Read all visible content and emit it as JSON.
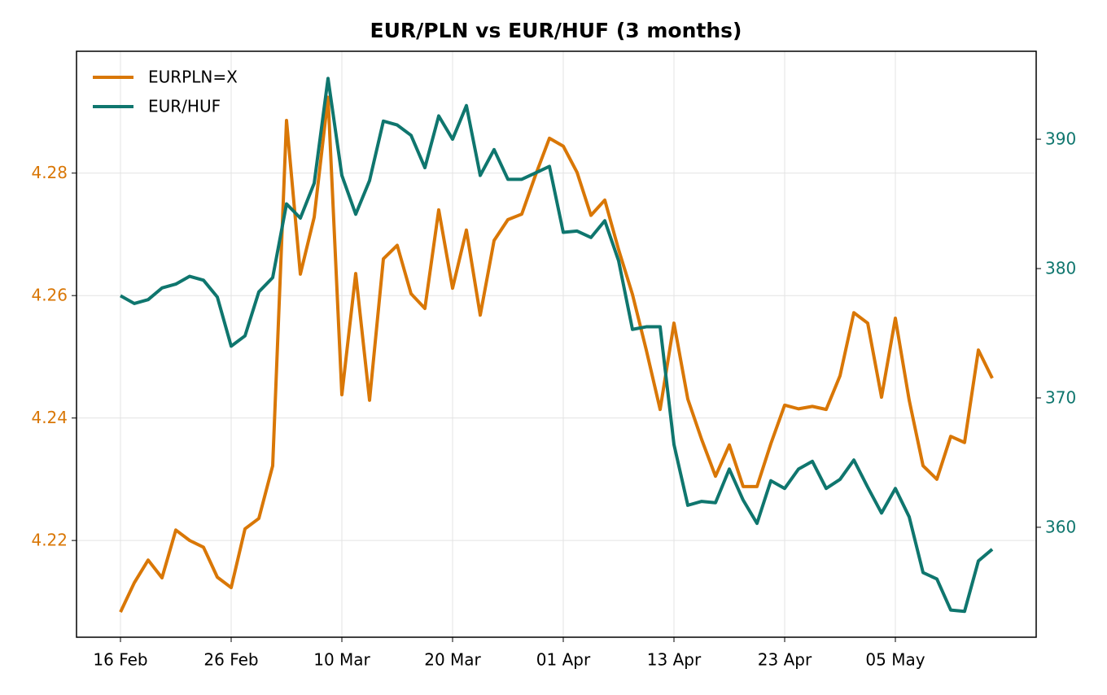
{
  "chart_data": {
    "type": "line",
    "title": "EUR/PLN vs EUR/HUF (3 months)",
    "categories": [
      "16 Feb",
      null,
      null,
      null,
      null,
      null,
      null,
      null,
      "26 Feb",
      null,
      null,
      null,
      null,
      null,
      null,
      null,
      "10 Mar",
      null,
      null,
      null,
      null,
      null,
      null,
      null,
      "20 Mar",
      null,
      null,
      null,
      null,
      null,
      null,
      null,
      "01 Apr",
      null,
      null,
      null,
      null,
      null,
      null,
      null,
      "13 Apr",
      null,
      null,
      null,
      null,
      null,
      null,
      null,
      "23 Apr",
      null,
      null,
      null,
      null,
      null,
      null,
      null,
      "05 May",
      null,
      null,
      null,
      null,
      null,
      null,
      null
    ],
    "series": [
      {
        "name": "EURPLN=X",
        "color": "#d97706",
        "values": [
          4.2083,
          4.2131,
          4.2168,
          4.2139,
          4.2217,
          4.22,
          4.2189,
          4.214,
          4.2123,
          4.2219,
          4.2236,
          4.2322,
          4.2886,
          4.2635,
          4.2728,
          4.2924,
          4.2438,
          4.2636,
          4.2429,
          4.266,
          4.2682,
          4.2603,
          4.2579,
          4.274,
          4.2612,
          4.2707,
          4.2568,
          4.269,
          4.2724,
          4.2733,
          4.2797,
          4.2857,
          4.2844,
          4.2801,
          4.2731,
          4.2756,
          4.2675,
          4.2602,
          4.2511,
          4.2414,
          4.2555,
          4.2431,
          4.2365,
          4.2305,
          4.2356,
          4.2288,
          4.2288,
          4.2358,
          4.2421,
          4.2415,
          4.2419,
          4.2414,
          4.2469,
          4.2572,
          4.2555,
          4.2434,
          4.2563,
          4.2429,
          4.2322,
          4.23,
          4.237,
          4.236,
          4.2511,
          4.2465
        ]
      },
      {
        "name": "EUR/HUF",
        "color": "#0f766e",
        "axis": "y2",
        "values": [
          377.9,
          377.3,
          377.6,
          378.5,
          378.8,
          379.4,
          379.1,
          377.8,
          374.0,
          374.8,
          378.2,
          379.3,
          385.0,
          383.9,
          386.6,
          394.7,
          387.2,
          384.2,
          386.8,
          391.4,
          391.1,
          390.3,
          387.8,
          391.8,
          390.0,
          392.6,
          387.2,
          389.2,
          386.9,
          386.9,
          387.4,
          387.9,
          382.8,
          382.9,
          382.4,
          383.7,
          380.6,
          375.3,
          375.5,
          375.5,
          366.4,
          361.7,
          362.0,
          361.9,
          364.5,
          362.1,
          360.3,
          363.6,
          363.0,
          364.5,
          365.1,
          363.0,
          363.7,
          365.2,
          363.1,
          361.1,
          363.0,
          360.8,
          356.5,
          356.0,
          353.6,
          353.5,
          357.4,
          358.3
        ]
      }
    ],
    "ylim": [
      4.2042,
      4.2999
    ],
    "yticks": [
      4.22,
      4.24,
      4.26,
      4.28
    ],
    "y2lim": [
      351.5,
      396.8
    ],
    "y2ticks": [
      360,
      370,
      380,
      390
    ],
    "grid": true,
    "legend": "upper-left"
  }
}
